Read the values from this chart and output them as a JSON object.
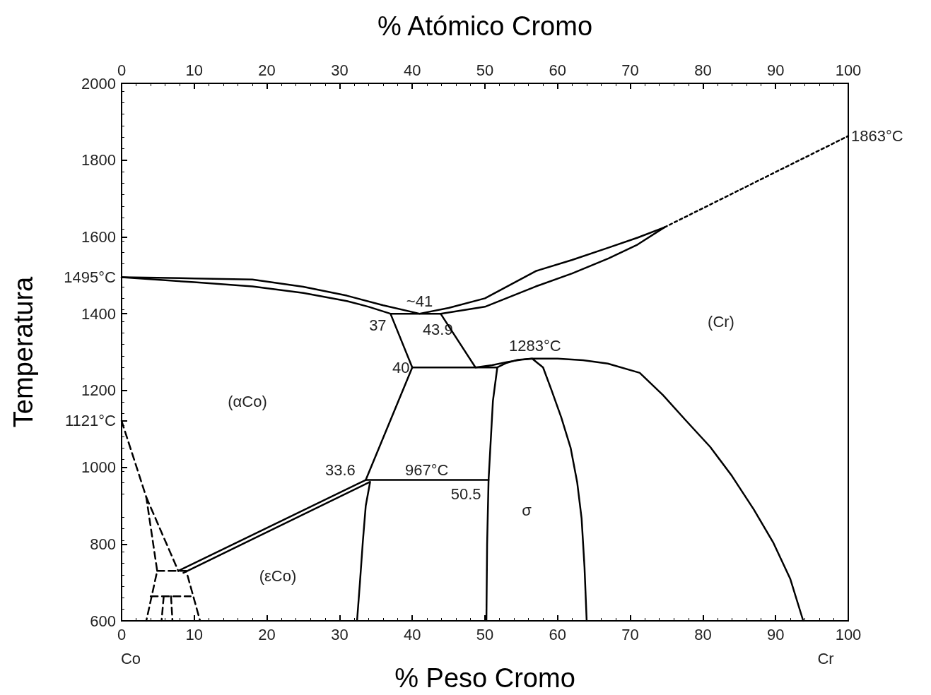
{
  "chart_data": {
    "type": "line",
    "xlabel": "% Peso Cromo",
    "x2label": "% Atómico Cromo",
    "ylabel": "Temperatura",
    "xlim": [
      0,
      100
    ],
    "xticks": [
      0,
      10,
      20,
      30,
      40,
      50,
      60,
      70,
      80,
      90,
      100
    ],
    "x2lim": [
      0,
      100
    ],
    "x2ticks": [
      0,
      10,
      20,
      30,
      40,
      50,
      60,
      70,
      80,
      90,
      100
    ],
    "ylim": [
      600,
      2000
    ],
    "yticks": [
      600,
      800,
      1000,
      {
        "value": 1121,
        "label": "1121°C"
      },
      1200,
      1400,
      {
        "value": 1495,
        "label": "1495°C"
      },
      1600,
      1800,
      2000
    ],
    "grid": false,
    "marker": "none",
    "series": [
      {
        "color": "#000000",
        "line_style": "solid",
        "x": [
          0,
          10,
          18,
          25,
          31,
          36,
          41,
          45,
          50,
          57,
          62,
          67,
          71,
          74.7
        ],
        "values": [
          1495,
          1492,
          1489,
          1470,
          1447,
          1422,
          1400,
          1415,
          1440,
          1511,
          1540,
          1572,
          1598,
          1625
        ]
      },
      {
        "color": "#000000",
        "line_style": "solid",
        "x": [
          0,
          10,
          18,
          25,
          31,
          34,
          37,
          40,
          33.6
        ],
        "values": [
          1495,
          1482,
          1471,
          1454,
          1433,
          1418,
          1400,
          1260,
          967
        ]
      },
      {
        "color": "#000000",
        "line_style": "solid",
        "x": [
          37,
          43.9
        ],
        "values": [
          1400,
          1400
        ]
      },
      {
        "color": "#000000",
        "line_style": "dotted",
        "x": [
          74.7,
          100
        ],
        "values": [
          1625,
          1863
        ]
      },
      {
        "color": "#000000",
        "line_style": "solid",
        "x": [
          74.7,
          71,
          67,
          62,
          57,
          50,
          43.9,
          48.7,
          51,
          53,
          55,
          56.5,
          60,
          63.5,
          66.9,
          71.3,
          74.5,
          77.6,
          81,
          84,
          87,
          89.7,
          92,
          93.8
        ],
        "values": [
          1625,
          1580,
          1544,
          1505,
          1471,
          1418,
          1400,
          1260,
          1266,
          1274,
          1280,
          1283,
          1283,
          1279,
          1270,
          1246,
          1188,
          1123,
          1053,
          977,
          890,
          803,
          710,
          600
        ]
      },
      {
        "color": "#000000",
        "line_style": "solid",
        "x": [
          40,
          51.7
        ],
        "values": [
          1260,
          1260
        ]
      },
      {
        "color": "#000000",
        "line_style": "solid",
        "x": [
          50.2,
          50.3,
          50.5,
          51.1,
          51.7,
          53,
          54.5,
          56.5,
          58,
          59.1,
          60.5,
          61.8,
          62.7,
          63.3,
          63.7,
          64
        ],
        "values": [
          600,
          800,
          967,
          1173,
          1260,
          1272,
          1280,
          1283,
          1260,
          1204,
          1130,
          1050,
          960,
          867,
          740,
          600
        ]
      },
      {
        "color": "#000000",
        "line_style": "solid",
        "x": [
          33.6,
          50.5
        ],
        "values": [
          967,
          967
        ]
      },
      {
        "color": "#000000",
        "line_style": "solid",
        "x": [
          8.5,
          34.2,
          33.6,
          33.2,
          32.8,
          32.4
        ],
        "values": [
          725,
          962,
          900,
          807,
          700,
          600
        ]
      },
      {
        "color": "#000000",
        "line_style": "solid",
        "x": [
          33.6,
          7.8
        ],
        "values": [
          967,
          730
        ]
      },
      {
        "color": "#000000",
        "line_style": "dashed",
        "x": [
          0,
          3.4,
          4.9,
          3.4
        ],
        "values": [
          1121,
          922,
          730,
          600
        ]
      },
      {
        "color": "#000000",
        "line_style": "dashed",
        "x": [
          3.4,
          7.8
        ],
        "values": [
          922,
          730
        ]
      },
      {
        "color": "#000000",
        "line_style": "dashed",
        "x": [
          4.9,
          8.9,
          10.8
        ],
        "values": [
          730,
          730,
          600
        ]
      },
      {
        "color": "#000000",
        "line_style": "dashed",
        "x": [
          4.0,
          9.5
        ],
        "values": [
          664,
          664
        ]
      },
      {
        "color": "#000000",
        "line_style": "dashed",
        "x": [
          5.8,
          5.5
        ],
        "values": [
          664,
          600
        ]
      },
      {
        "color": "#000000",
        "line_style": "dashed",
        "x": [
          6.8,
          7.0
        ],
        "values": [
          664,
          600
        ]
      }
    ],
    "annotations": [
      {
        "text": "1863°C",
        "x": 100,
        "y": 1863
      },
      {
        "text": "~41",
        "x": 41,
        "y": 1400
      },
      {
        "text": "37",
        "x": 37,
        "y": 1400
      },
      {
        "text": "43.9",
        "x": 43.9,
        "y": 1400
      },
      {
        "text": "40",
        "x": 40,
        "y": 1260
      },
      {
        "text": "33.6",
        "x": 33.6,
        "y": 967
      },
      {
        "text": "967°C",
        "x": 42,
        "y": 967
      },
      {
        "text": "50.5",
        "x": 50.5,
        "y": 967
      },
      {
        "text": "1283°C",
        "x": 56.5,
        "y": 1283
      },
      "(αCo)",
      "(εCo)",
      "σ",
      "(Cr)",
      "Co",
      "Cr"
    ]
  }
}
